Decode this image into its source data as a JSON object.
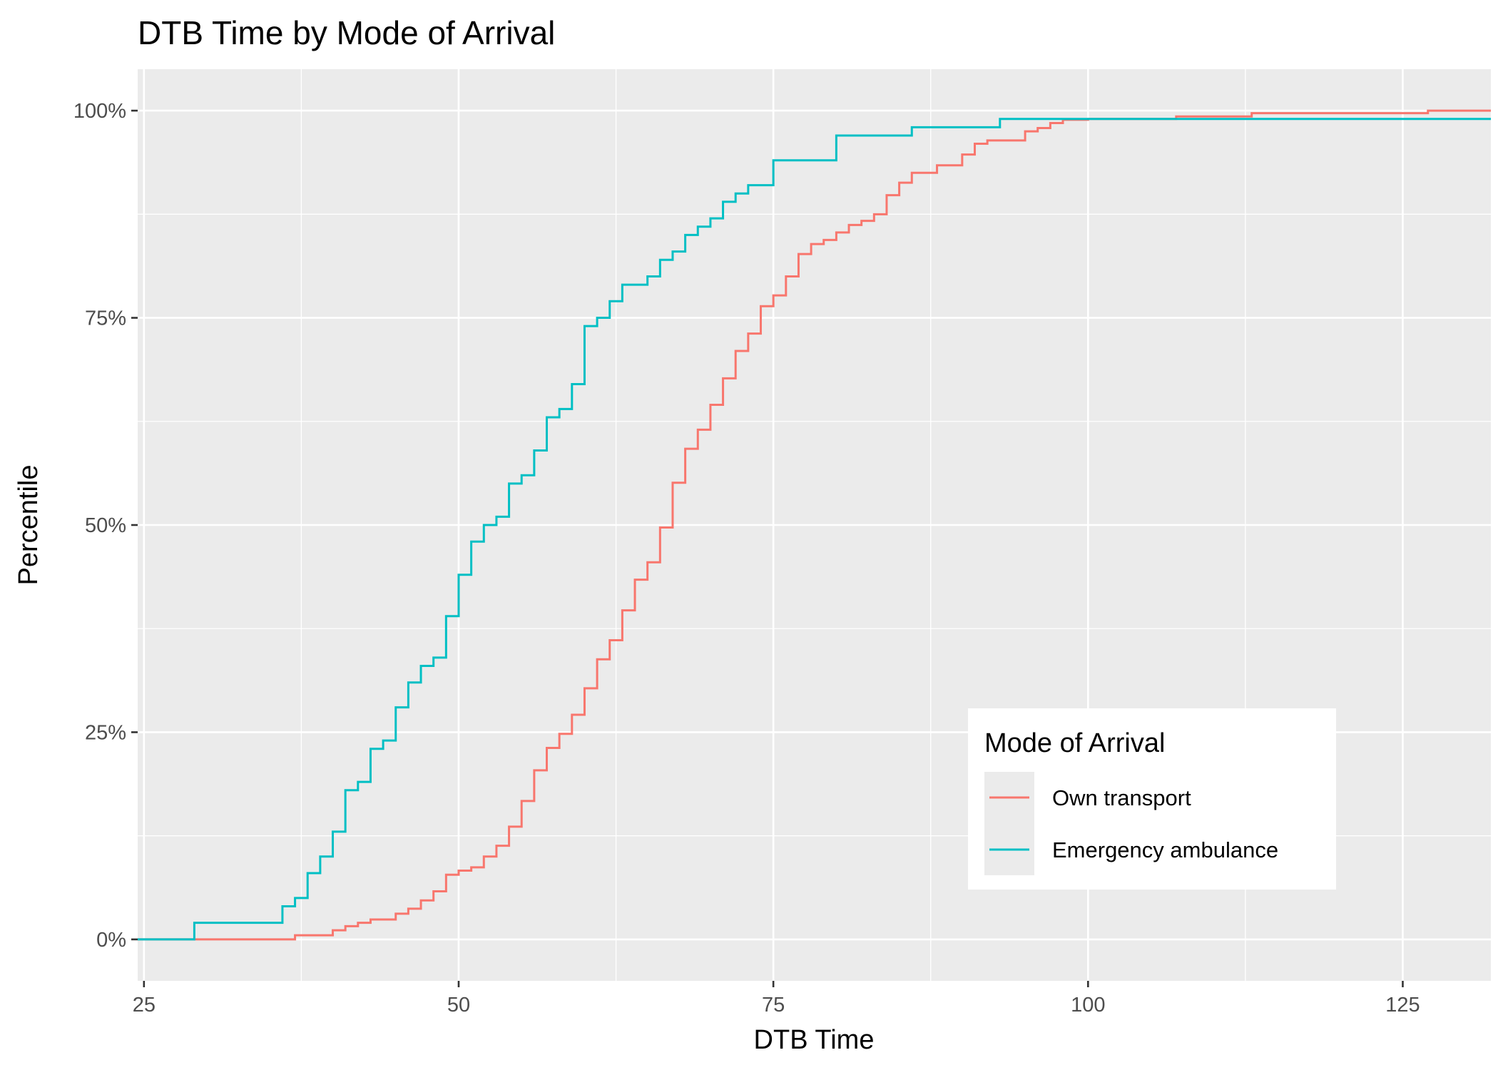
{
  "chart_data": {
    "type": "line",
    "step": true,
    "title": "DTB Time by Mode of Arrival",
    "xlabel": "DTB Time",
    "ylabel": "Percentile",
    "xlim": [
      24.5,
      132
    ],
    "ylim": [
      -0.05,
      1.05
    ],
    "x_ticks": [
      25,
      50,
      75,
      100,
      125
    ],
    "x_tick_labels": [
      "25",
      "50",
      "75",
      "100",
      "125"
    ],
    "y_ticks": [
      0,
      0.25,
      0.5,
      0.75,
      1
    ],
    "y_tick_labels": [
      "0%",
      "25%",
      "50%",
      "75%",
      "100%"
    ],
    "grid": true,
    "legend": {
      "title": "Mode of Arrival",
      "position": "bottom-right"
    },
    "series": [
      {
        "name": "Own transport",
        "color": "#F8766D",
        "x": [
          24.5,
          37,
          40,
          41,
          42,
          43,
          44,
          45,
          46,
          47,
          48,
          49,
          50,
          51,
          52,
          53,
          54,
          55,
          56,
          57,
          58,
          59,
          60,
          61,
          62,
          63,
          64,
          65,
          66,
          67,
          68,
          69,
          70,
          71,
          72,
          73,
          74,
          75,
          76,
          77,
          78,
          79,
          80,
          81,
          82,
          83,
          84,
          85,
          86,
          88,
          90,
          91,
          92,
          95,
          96,
          97,
          98,
          100,
          107,
          113,
          127
        ],
        "y": [
          0,
          0.005,
          0.011,
          0.016,
          0.02,
          0.024,
          0.024,
          0.031,
          0.037,
          0.047,
          0.058,
          0.078,
          0.083,
          0.087,
          0.1,
          0.113,
          0.136,
          0.167,
          0.204,
          0.231,
          0.248,
          0.271,
          0.303,
          0.338,
          0.361,
          0.397,
          0.434,
          0.455,
          0.497,
          0.551,
          0.592,
          0.615,
          0.645,
          0.677,
          0.71,
          0.731,
          0.764,
          0.777,
          0.8,
          0.827,
          0.839,
          0.844,
          0.853,
          0.862,
          0.867,
          0.875,
          0.898,
          0.913,
          0.925,
          0.934,
          0.947,
          0.96,
          0.964,
          0.975,
          0.979,
          0.985,
          0.989,
          0.99,
          0.993,
          0.997,
          1.0
        ]
      },
      {
        "name": "Emergency ambulance",
        "color": "#00BFC4",
        "x": [
          24.5,
          29,
          36,
          37,
          38,
          39,
          40,
          41,
          42,
          43,
          44,
          45,
          46,
          47,
          48,
          49,
          50,
          51,
          52,
          53,
          54,
          55,
          56,
          57,
          58,
          59,
          60,
          61,
          62,
          63,
          65,
          66,
          67,
          68,
          69,
          70,
          71,
          72,
          73,
          75,
          80,
          86,
          93
        ],
        "y": [
          0,
          0.02,
          0.04,
          0.05,
          0.08,
          0.1,
          0.13,
          0.18,
          0.19,
          0.23,
          0.24,
          0.28,
          0.31,
          0.33,
          0.34,
          0.39,
          0.44,
          0.48,
          0.5,
          0.51,
          0.55,
          0.56,
          0.59,
          0.63,
          0.64,
          0.67,
          0.74,
          0.75,
          0.77,
          0.79,
          0.8,
          0.82,
          0.83,
          0.85,
          0.86,
          0.87,
          0.89,
          0.9,
          0.91,
          0.94,
          0.97,
          0.98,
          0.99
        ]
      }
    ]
  }
}
